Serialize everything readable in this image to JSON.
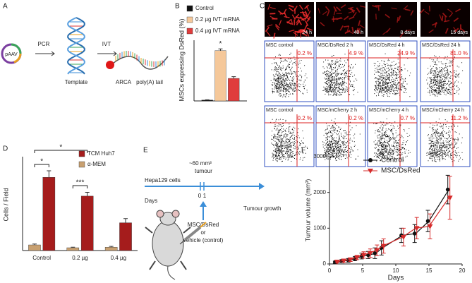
{
  "panels": {
    "A": {
      "label": "A",
      "plasmid": "pAAV",
      "step1": "PCR",
      "template": "Template",
      "step2": "IVT",
      "cap": "ARCA",
      "tail": "poly(A) tail"
    },
    "C": {
      "label": "C",
      "images": [
        {
          "caption": "24 h"
        },
        {
          "caption": "48 h"
        },
        {
          "caption": "8 days"
        },
        {
          "caption": "15 days"
        }
      ],
      "flow": [
        {
          "title": "MSC control",
          "percent": "0.2 %"
        },
        {
          "title": "MSC/DsRed 2 h",
          "percent": "4.9 %"
        },
        {
          "title": "MSC/DsRed 4 h",
          "percent": "24.9 %"
        },
        {
          "title": "MSC/DsRed 24 h",
          "percent": "81.0 %"
        },
        {
          "title": "MSC control",
          "percent": "0.2 %"
        },
        {
          "title": "MSC/mCherry 2 h",
          "percent": "0.2 %"
        },
        {
          "title": "MSC/mCherry 4 h",
          "percent": "0.7 %"
        },
        {
          "title": "MSC/mCherry 24 h",
          "percent": "11.2 %"
        }
      ]
    },
    "E": {
      "label": "E",
      "cells": "Hepa129 cells",
      "size": "~60 mm³",
      "size2": "tumour",
      "days": "Days",
      "day0": "0",
      "day1": "1",
      "growth": "Tumour growth",
      "treat1": "MSC/DsRed",
      "treat2": "or",
      "treat3": "vehicle (control)"
    }
  },
  "chart_data": [
    {
      "type": "bar",
      "label": "B",
      "y_label": "MSCs expressing DsRed (%)",
      "ylim": [
        0,
        70
      ],
      "annotations": [
        "*"
      ],
      "series": [
        {
          "name": "Control",
          "color": "#111111",
          "values": [
            1
          ],
          "errors": [
            0.3
          ]
        },
        {
          "name": "0.2 µg IVT mRNA",
          "color": "#f5c89a",
          "values": [
            58
          ],
          "errors": [
            2
          ]
        },
        {
          "name": "0.4 µg IVT mRNA",
          "color": "#e03c3c",
          "values": [
            26
          ],
          "errors": [
            2
          ]
        }
      ]
    },
    {
      "type": "bar",
      "label": "D",
      "y_label": "Cells / Field",
      "ylim": [
        0,
        500
      ],
      "annotations": [
        "*",
        "*",
        "***"
      ],
      "categories": [
        "Control",
        "0.2 µg",
        "0.4 µg"
      ],
      "series": [
        {
          "name": "TCM Huh7",
          "color": "#a51c1c",
          "values": [
            390,
            290,
            148
          ],
          "errors": [
            35,
            20,
            22
          ]
        },
        {
          "name": "α-MEM",
          "color": "#c8a070",
          "values": [
            30,
            15,
            18
          ],
          "errors": [
            5,
            3,
            4
          ]
        }
      ]
    },
    {
      "type": "line",
      "label": "F",
      "x_label": "Days",
      "y_label": "Tumour volume (mm³)",
      "xlim": [
        0,
        20
      ],
      "ylim": [
        0,
        3000
      ],
      "xticks": [
        0,
        5,
        10,
        15,
        20
      ],
      "yticks": [
        0,
        1000,
        2000,
        3000
      ],
      "x": [
        1,
        2,
        3,
        4,
        5,
        6,
        7,
        8,
        11,
        13,
        15,
        18
      ],
      "series": [
        {
          "name": "Control",
          "color": "#111111",
          "marker": "circle",
          "values": [
            50,
            80,
            100,
            150,
            220,
            250,
            300,
            450,
            800,
            850,
            1200,
            2080
          ],
          "errors": [
            30,
            40,
            50,
            60,
            80,
            100,
            150,
            200,
            200,
            250,
            300,
            400
          ]
        },
        {
          "name": "MSC/DsRed",
          "color": "#d62b2b",
          "marker": "triangle",
          "values": [
            60,
            90,
            120,
            180,
            250,
            300,
            380,
            500,
            750,
            1000,
            1050,
            1850
          ],
          "errors": [
            30,
            40,
            50,
            60,
            90,
            120,
            150,
            200,
            250,
            300,
            350,
            600
          ]
        }
      ]
    }
  ]
}
